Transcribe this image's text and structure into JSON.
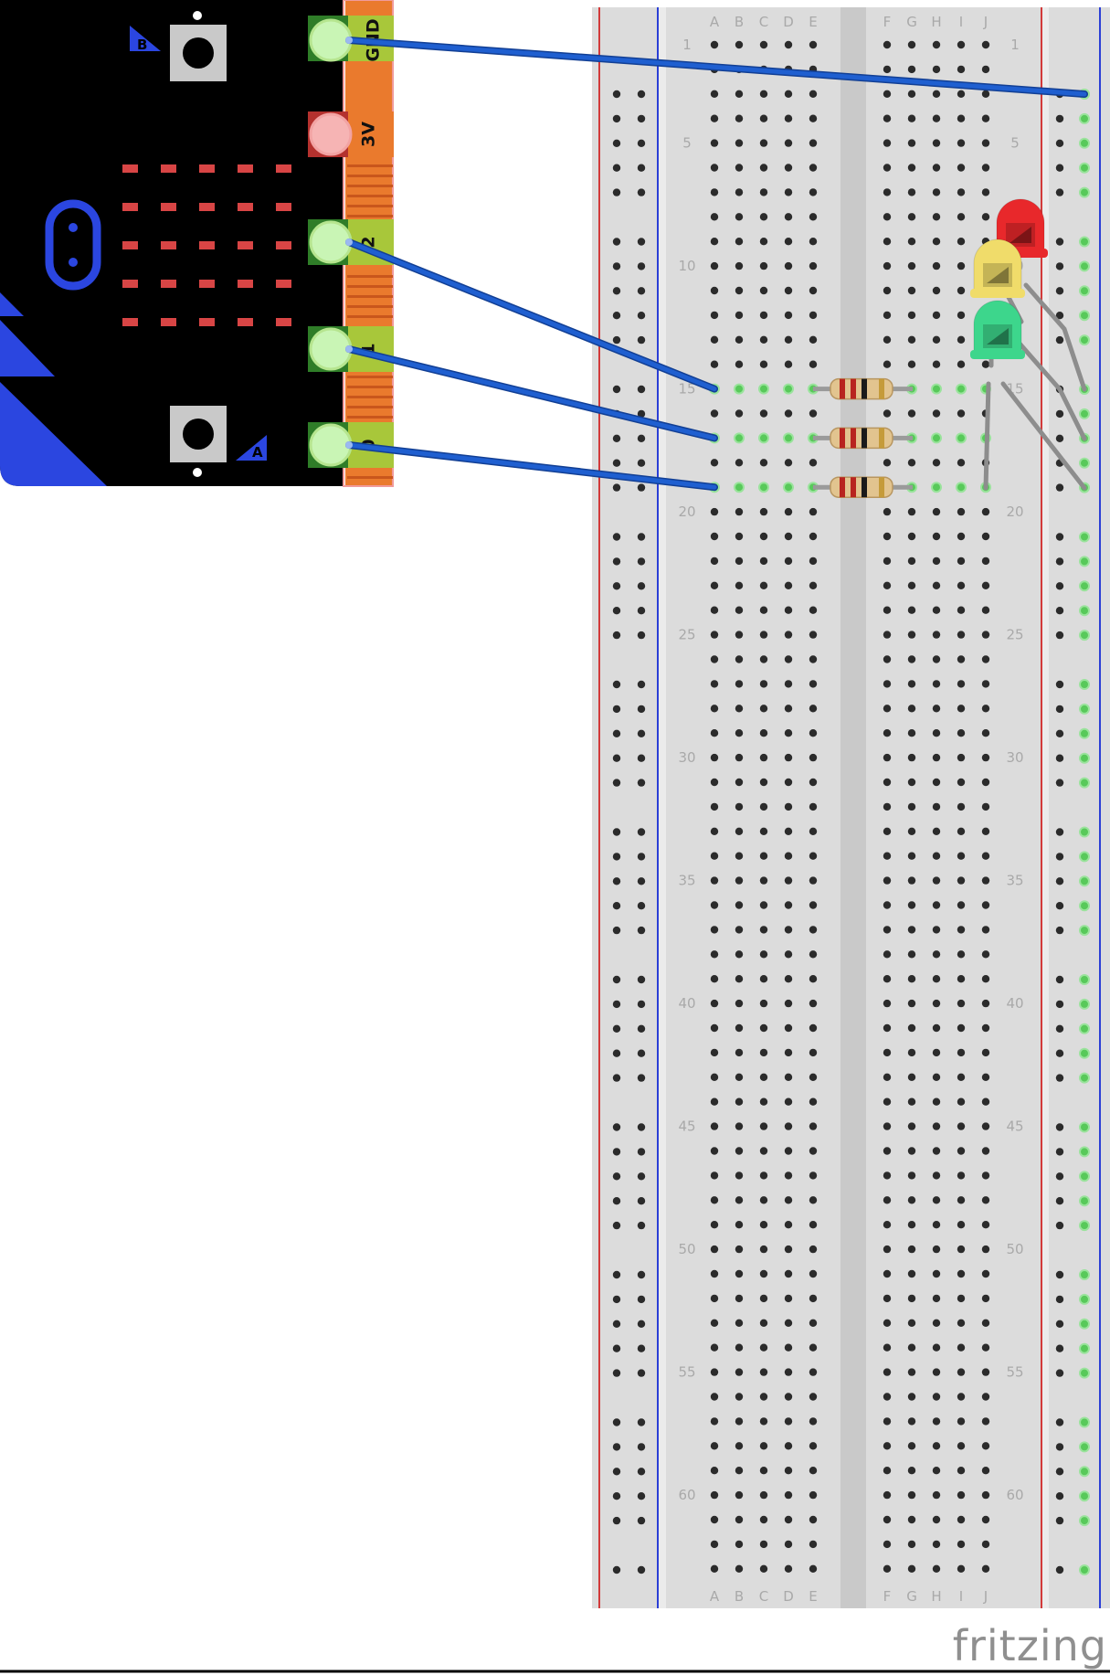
{
  "breadboard": {
    "row_count": 63,
    "column_letters_left": [
      "A",
      "B",
      "C",
      "D",
      "E"
    ],
    "column_letters_right": [
      "F",
      "G",
      "H",
      "I",
      "J"
    ],
    "row_numbers_shown": [
      "1",
      "5",
      "10",
      "15",
      "20",
      "25",
      "30",
      "35",
      "40",
      "45",
      "50",
      "55",
      "60"
    ],
    "rail_color_positive": "#d23a3a",
    "rail_color_negative": "#2b3fd6"
  },
  "microbit": {
    "pins": [
      {
        "label": "GND",
        "role": "gnd"
      },
      {
        "label": "3V",
        "role": "power"
      },
      {
        "label": "2",
        "role": "gpio"
      },
      {
        "label": "1",
        "role": "gpio"
      },
      {
        "label": "0",
        "role": "gpio"
      }
    ],
    "buttons": [
      {
        "label": "B"
      },
      {
        "label": "A"
      }
    ],
    "led_matrix": {
      "rows": 5,
      "cols": 5,
      "color": "#d84545"
    }
  },
  "components": {
    "resistors": [
      {
        "row": 15
      },
      {
        "row": 17
      },
      {
        "row": 19
      }
    ],
    "leds": [
      {
        "color_name": "red",
        "color": "#e8282b"
      },
      {
        "color_name": "yellow",
        "color": "#f0dc6a"
      },
      {
        "color_name": "green",
        "color": "#3dd68c"
      }
    ],
    "wire_color": "#1f5fd0"
  },
  "branding": {
    "logo_text": "fritzing"
  }
}
